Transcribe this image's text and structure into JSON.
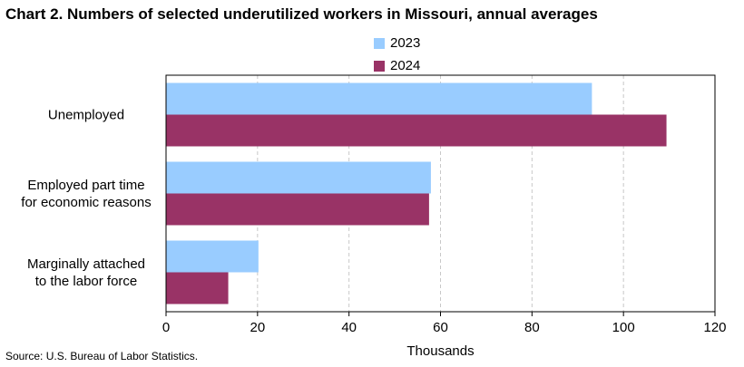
{
  "title": "Chart 2. Numbers of selected underutilized workers in Missouri, annual averages",
  "source": "Source: U.S. Bureau  of Labor Statistics.",
  "colors": {
    "2023": "#99ccff",
    "2024": "#993366",
    "grid": "#c8c8c8",
    "axis": "#000000"
  },
  "chart_data": {
    "type": "bar",
    "orientation": "horizontal",
    "categories": [
      [
        "Unemployed"
      ],
      [
        "Employed part time",
        "for economic reasons"
      ],
      [
        "Marginally attached",
        "to the labor force"
      ]
    ],
    "series": [
      {
        "name": "2023",
        "values": [
          93.1,
          57.9,
          20.2
        ]
      },
      {
        "name": "2024",
        "values": [
          109.4,
          57.5,
          13.6
        ]
      }
    ],
    "xlabel": "Thousands",
    "ylabel": "",
    "xlim": [
      0,
      120
    ],
    "xticks": [
      0,
      20,
      40,
      60,
      80,
      100,
      120
    ],
    "grid": "vertical dashed",
    "legend": "top-center"
  }
}
